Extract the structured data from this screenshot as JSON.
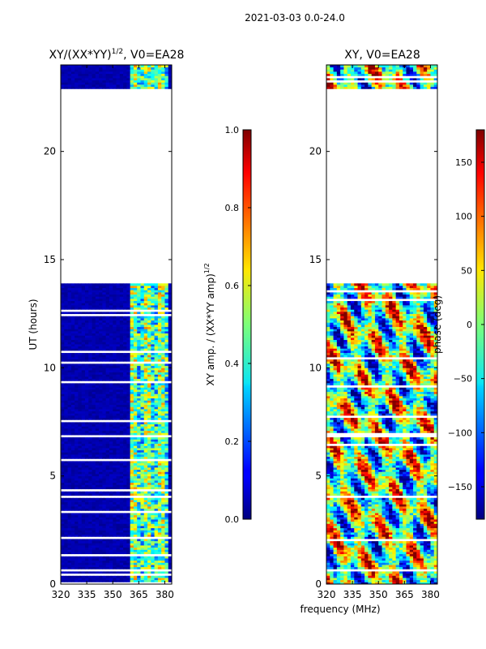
{
  "suptitle": "2021-03-03 0.0-24.0",
  "chart_data": [
    {
      "type": "heatmap",
      "title_text": "XY/(XX*YY)",
      "title_exp": "1/2",
      "title_suffix": ", V0=EA28",
      "xlabel": "",
      "ylabel": "UT (hours)",
      "xlim": [
        320,
        384
      ],
      "ylim": [
        0,
        24
      ],
      "xticks": [
        "320",
        "335",
        "350",
        "365",
        "380"
      ],
      "xtick_values": [
        320,
        335,
        350,
        365,
        380
      ],
      "yticks": [
        "0",
        "5",
        "10",
        "15",
        "20"
      ],
      "ytick_values": [
        0,
        5,
        10,
        15,
        20
      ],
      "data_ranges_hours": [
        [
          0.0,
          13.9
        ],
        [
          22.9,
          24.0
        ]
      ],
      "active_band_mhz": [
        359,
        380
      ],
      "colorbar": {
        "label_text": "XY amp. / (XX*YY amp)",
        "label_exp": "1/2",
        "min": 0.0,
        "max": 1.0,
        "ticks": [
          "0.0",
          "0.2",
          "0.4",
          "0.6",
          "0.8",
          "1.0"
        ],
        "tick_values": [
          0.0,
          0.2,
          0.4,
          0.6,
          0.8,
          1.0
        ]
      }
    },
    {
      "type": "heatmap",
      "title_text": "XY, V0=EA28",
      "xlabel": "frequency (MHz)",
      "ylabel": "",
      "xlim": [
        320,
        384
      ],
      "ylim": [
        0,
        24
      ],
      "xticks": [
        "320",
        "335",
        "350",
        "365",
        "380"
      ],
      "xtick_values": [
        320,
        335,
        350,
        365,
        380
      ],
      "yticks": [
        "0",
        "5",
        "10",
        "15",
        "20"
      ],
      "ytick_values": [
        0,
        5,
        10,
        15,
        20
      ],
      "data_ranges_hours": [
        [
          0.0,
          13.9
        ],
        [
          22.9,
          24.0
        ]
      ],
      "colorbar": {
        "label_text": "phase (deg)",
        "min": -180,
        "max": 180,
        "ticks": [
          "−150",
          "−100",
          "−50",
          "0",
          "50",
          "100",
          "150"
        ],
        "tick_values": [
          -150,
          -100,
          -50,
          0,
          50,
          100,
          150
        ]
      }
    }
  ]
}
